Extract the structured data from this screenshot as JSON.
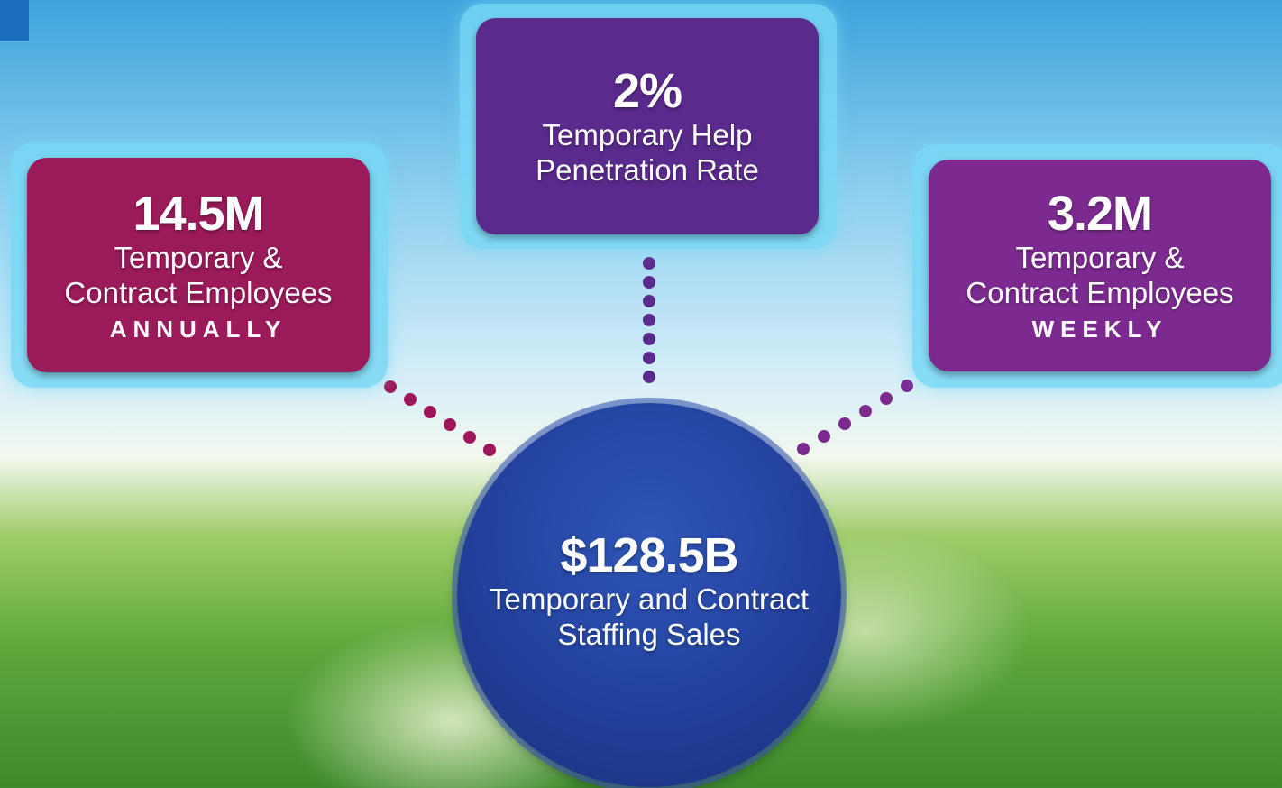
{
  "center": {
    "value": "$128.5B",
    "lines": [
      "Temporary and Contract",
      "Staffing Sales"
    ]
  },
  "boxes": [
    {
      "value": "14.5M",
      "lines": [
        "Temporary &",
        "Contract Employees"
      ],
      "period": "ANNUALLY"
    },
    {
      "value": "2%",
      "lines": [
        "Temporary Help",
        "Penetration Rate"
      ]
    },
    {
      "value": "3.2M",
      "lines": [
        "Temporary &",
        "Contract Employees"
      ],
      "period": "WEEKLY"
    }
  ]
}
